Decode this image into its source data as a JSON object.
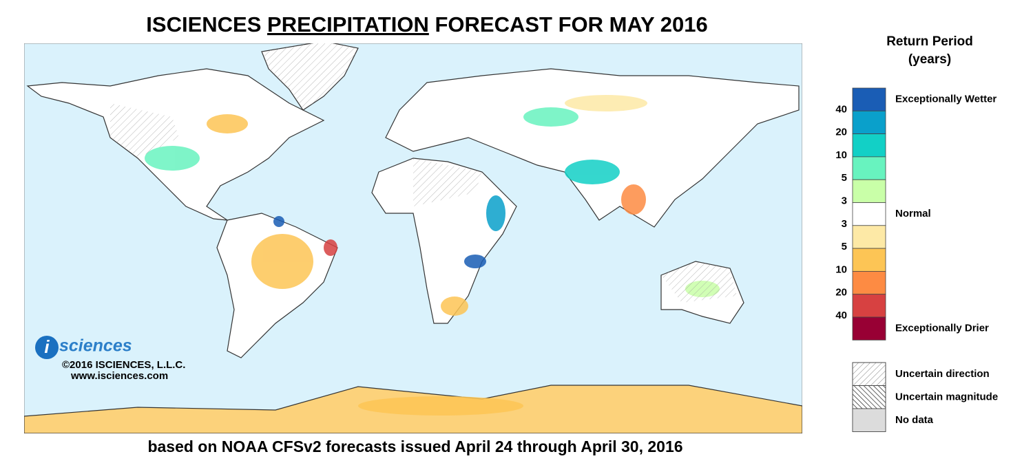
{
  "header": {
    "title_prefix": "ISCIENCES",
    "title_emphasis": "PRECIPITATION",
    "title_suffix": "FORECAST FOR MAY 2016",
    "subtitle": "based on NOAA CFSv2 forecasts issued April 24 through April 30, 2016"
  },
  "logo": {
    "mark": "i",
    "word": "sciences",
    "copyright": "©2016 ISCIENCES, L.L.C.",
    "url": "www.isciences.com"
  },
  "legend": {
    "title_line1": "Return Period",
    "title_line2": "(years)",
    "colors": [
      "#1a5db5",
      "#0aa0cb",
      "#12d0c6",
      "#68f3bf",
      "#c9ffa8",
      "#ffffff",
      "#fde9a6",
      "#fdc555",
      "#fd8b43",
      "#d74141",
      "#980034"
    ],
    "wet_ticks": [
      40,
      20,
      10,
      5,
      3
    ],
    "dry_ticks": [
      3,
      5,
      10,
      20,
      40
    ],
    "wet_label": "Exceptionally Wetter",
    "normal_label": "Normal",
    "dry_label": "Exceptionally Drier",
    "patterns": [
      "Uncertain direction",
      "Uncertain magnitude",
      "No data"
    ]
  }
}
